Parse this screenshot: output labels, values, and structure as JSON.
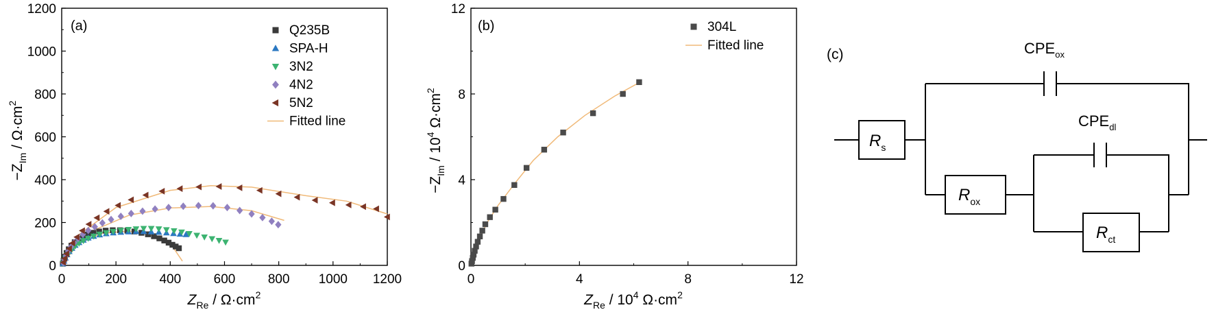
{
  "chart_data": [
    {
      "type": "scatter",
      "panel_label": "(a)",
      "xlabel": {
        "symbol": "Z",
        "sub": "Re",
        "unit": " / Ω·cm",
        "sup": "2"
      },
      "ylabel": {
        "prefix": "−Z",
        "sub": "Im",
        "unit": " / Ω·cm",
        "sup": "2"
      },
      "xlim": [
        0,
        1200
      ],
      "ylim": [
        0,
        1200
      ],
      "x_ticks": [
        "0",
        "200",
        "400",
        "600",
        "800",
        "1000",
        "1200"
      ],
      "y_ticks": [
        "0",
        "200",
        "400",
        "600",
        "800",
        "1000",
        "1200"
      ],
      "grid": false,
      "legend_position": "top-right",
      "series": [
        {
          "name": "Q235B",
          "marker": "square",
          "color": "#3a3a3a",
          "points": [
            [
              4,
              8
            ],
            [
              7,
              22
            ],
            [
              12,
              40
            ],
            [
              18,
              58
            ],
            [
              26,
              75
            ],
            [
              36,
              92
            ],
            [
              48,
              108
            ],
            [
              62,
              122
            ],
            [
              78,
              134
            ],
            [
              96,
              144
            ],
            [
              116,
              152
            ],
            [
              138,
              158
            ],
            [
              162,
              162
            ],
            [
              188,
              164
            ],
            [
              215,
              164
            ],
            [
              242,
              162
            ],
            [
              268,
              158
            ],
            [
              294,
              152
            ],
            [
              318,
              145
            ],
            [
              340,
              136
            ],
            [
              360,
              126
            ],
            [
              378,
              116
            ],
            [
              394,
              106
            ],
            [
              408,
              96
            ],
            [
              420,
              88
            ],
            [
              432,
              80
            ]
          ]
        },
        {
          "name": "SPA-H",
          "marker": "triangle-up",
          "color": "#2b78c2",
          "points": [
            [
              5,
              8
            ],
            [
              9,
              20
            ],
            [
              14,
              35
            ],
            [
              20,
              50
            ],
            [
              28,
              65
            ],
            [
              38,
              80
            ],
            [
              50,
              94
            ],
            [
              64,
              107
            ],
            [
              80,
              118
            ],
            [
              98,
              128
            ],
            [
              118,
              136
            ],
            [
              140,
              143
            ],
            [
              164,
              148
            ],
            [
              190,
              152
            ],
            [
              218,
              155
            ],
            [
              246,
              157
            ],
            [
              274,
              158
            ],
            [
              302,
              158
            ],
            [
              330,
              157
            ],
            [
              358,
              155
            ],
            [
              386,
              152
            ],
            [
              412,
              149
            ],
            [
              436,
              146
            ],
            [
              458,
              144
            ]
          ]
        },
        {
          "name": "3N2",
          "marker": "triangle-down",
          "color": "#3cb371",
          "points": [
            [
              5,
              8
            ],
            [
              9,
              20
            ],
            [
              14,
              34
            ],
            [
              20,
              48
            ],
            [
              28,
              62
            ],
            [
              38,
              76
            ],
            [
              50,
              90
            ],
            [
              64,
              103
            ],
            [
              80,
              115
            ],
            [
              98,
              126
            ],
            [
              118,
              136
            ],
            [
              140,
              145
            ],
            [
              164,
              152
            ],
            [
              190,
              158
            ],
            [
              218,
              163
            ],
            [
              246,
              167
            ],
            [
              274,
              170
            ],
            [
              302,
              172
            ],
            [
              330,
              172
            ],
            [
              358,
              170
            ],
            [
              386,
              166
            ],
            [
              414,
              161
            ],
            [
              442,
              155
            ],
            [
              470,
              148
            ],
            [
              498,
              140
            ],
            [
              526,
              132
            ],
            [
              554,
              124
            ],
            [
              580,
              116
            ],
            [
              604,
              108
            ]
          ]
        },
        {
          "name": "4N2",
          "marker": "diamond",
          "color": "#9080c0",
          "points": [
            [
              6,
              12
            ],
            [
              10,
              28
            ],
            [
              16,
              46
            ],
            [
              24,
              66
            ],
            [
              34,
              86
            ],
            [
              46,
              106
            ],
            [
              60,
              125
            ],
            [
              78,
              145
            ],
            [
              98,
              163
            ],
            [
              122,
              180
            ],
            [
              150,
              198
            ],
            [
              182,
              214
            ],
            [
              218,
              229
            ],
            [
              256,
              242
            ],
            [
              298,
              253
            ],
            [
              344,
              263
            ],
            [
              394,
              270
            ],
            [
              448,
              276
            ],
            [
              504,
              279
            ],
            [
              558,
              278
            ],
            [
              610,
              270
            ],
            [
              656,
              256
            ],
            [
              700,
              240
            ],
            [
              740,
              223
            ],
            [
              774,
              206
            ],
            [
              798,
              190
            ]
          ]
        },
        {
          "name": "5N2",
          "marker": "triangle-left",
          "color": "#7a3525",
          "points": [
            [
              6,
              14
            ],
            [
              11,
              32
            ],
            [
              18,
              54
            ],
            [
              28,
              78
            ],
            [
              40,
              104
            ],
            [
              56,
              132
            ],
            [
              76,
              162
            ],
            [
              100,
              192
            ],
            [
              130,
              222
            ],
            [
              166,
              252
            ],
            [
              208,
              280
            ],
            [
              256,
              306
            ],
            [
              310,
              328
            ],
            [
              370,
              346
            ],
            [
              436,
              358
            ],
            [
              506,
              366
            ],
            [
              580,
              368
            ],
            [
              656,
              362
            ],
            [
              730,
              350
            ],
            [
              800,
              334
            ],
            [
              868,
              318
            ],
            [
              934,
              304
            ],
            [
              998,
              292
            ],
            [
              1058,
              282
            ],
            [
              1112,
              274
            ],
            [
              1160,
              264
            ],
            [
              1200,
              226
            ]
          ]
        }
      ],
      "fit_lines": [
        {
          "name": "Fitted line",
          "color": "#f0b978",
          "points": [
            [
              0,
              0
            ],
            [
              60,
              100
            ],
            [
              150,
              150
            ],
            [
              250,
              160
            ],
            [
              350,
              135
            ],
            [
              410,
              85
            ],
            [
              445,
              20
            ]
          ]
        },
        {
          "name": "Fitted line",
          "color": "#f0b978",
          "points": [
            [
              0,
              0
            ],
            [
              40,
              80
            ],
            [
              120,
              165
            ],
            [
              250,
              235
            ],
            [
              400,
              268
            ],
            [
              550,
              275
            ],
            [
              700,
              255
            ],
            [
              820,
              210
            ]
          ]
        },
        {
          "name": "Fitted line",
          "color": "#f0b978",
          "points": [
            [
              0,
              0
            ],
            [
              60,
              140
            ],
            [
              200,
              270
            ],
            [
              400,
              350
            ],
            [
              550,
              372
            ],
            [
              700,
              365
            ],
            [
              900,
              325
            ],
            [
              1050,
              300
            ],
            [
              1200,
              240
            ]
          ]
        }
      ]
    },
    {
      "type": "scatter",
      "panel_label": "(b)",
      "xlabel": {
        "symbol": "Z",
        "sub": "Re",
        "unit": " / 10",
        "sup": "4",
        "unit2": " Ω·cm",
        "sup2": "2"
      },
      "ylabel": {
        "prefix": "−Z",
        "sub": "Im",
        "unit": " / 10",
        "sup": "4",
        "unit2": " Ω·cm",
        "sup2": "2"
      },
      "xlim": [
        0,
        12
      ],
      "ylim": [
        0,
        12
      ],
      "x_ticks": [
        "0",
        "4",
        "8",
        "12"
      ],
      "y_ticks": [
        "0",
        "4",
        "8",
        "12"
      ],
      "grid": false,
      "legend_position": "top-right",
      "series": [
        {
          "name": "304L",
          "marker": "square",
          "color": "#4a4a4a",
          "points": [
            [
              0.02,
              0.08
            ],
            [
              0.04,
              0.2
            ],
            [
              0.07,
              0.35
            ],
            [
              0.1,
              0.5
            ],
            [
              0.14,
              0.68
            ],
            [
              0.19,
              0.88
            ],
            [
              0.25,
              1.1
            ],
            [
              0.33,
              1.35
            ],
            [
              0.42,
              1.62
            ],
            [
              0.53,
              1.92
            ],
            [
              0.7,
              2.25
            ],
            [
              0.9,
              2.6
            ],
            [
              1.2,
              3.1
            ],
            [
              1.6,
              3.75
            ],
            [
              2.05,
              4.55
            ],
            [
              2.7,
              5.4
            ],
            [
              3.4,
              6.2
            ],
            [
              4.5,
              7.1
            ],
            [
              5.6,
              8.0
            ],
            [
              6.2,
              8.55
            ]
          ]
        }
      ],
      "fit_lines": [
        {
          "name": "Fitted line",
          "color": "#f0b978",
          "points": [
            [
              0,
              0
            ],
            [
              0.1,
              0.5
            ],
            [
              0.3,
              1.2
            ],
            [
              0.6,
              2.0
            ],
            [
              1.0,
              2.8
            ],
            [
              1.6,
              3.8
            ],
            [
              2.3,
              4.9
            ],
            [
              3.2,
              6.0
            ],
            [
              4.2,
              7.0
            ],
            [
              5.3,
              7.9
            ],
            [
              6.3,
              8.6
            ]
          ]
        }
      ]
    }
  ],
  "circuit": {
    "panel_label": "(c)",
    "rs": {
      "main": "R",
      "sub": "s"
    },
    "rox": {
      "main": "R",
      "sub": "ox"
    },
    "rct": {
      "main": "R",
      "sub": "ct"
    },
    "cpe_ox": {
      "main": "CPE",
      "sub": "ox"
    },
    "cpe_dl": {
      "main": "CPE",
      "sub": "dl"
    }
  }
}
